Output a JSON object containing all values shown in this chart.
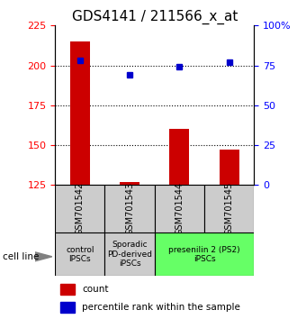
{
  "title": "GDS4141 / 211566_x_at",
  "samples": [
    "GSM701542",
    "GSM701543",
    "GSM701544",
    "GSM701545"
  ],
  "count_values": [
    215,
    127,
    160,
    147
  ],
  "percentile_values": [
    78,
    69,
    74,
    77
  ],
  "ylim_left": [
    125,
    225
  ],
  "ylim_right": [
    0,
    100
  ],
  "yticks_left": [
    125,
    150,
    175,
    200,
    225
  ],
  "yticks_right": [
    0,
    25,
    50,
    75,
    100
  ],
  "ytick_labels_right": [
    "0",
    "25",
    "50",
    "75",
    "100%"
  ],
  "bar_color": "#cc0000",
  "dot_color": "#0000cc",
  "bar_width": 0.4,
  "grid_yticks": [
    150,
    175,
    200
  ],
  "group_defs": [
    [
      0.5,
      1.5,
      "#cccccc",
      "control\nIPSCs"
    ],
    [
      1.5,
      2.5,
      "#cccccc",
      "Sporadic\nPD-derived\niPSCs"
    ],
    [
      2.5,
      4.5,
      "#66ff66",
      "presenilin 2 (PS2)\niPSCs"
    ]
  ],
  "cell_line_label": "cell line",
  "legend_count_label": "count",
  "legend_pct_label": "percentile rank within the sample",
  "title_fontsize": 11,
  "tick_fontsize": 8
}
